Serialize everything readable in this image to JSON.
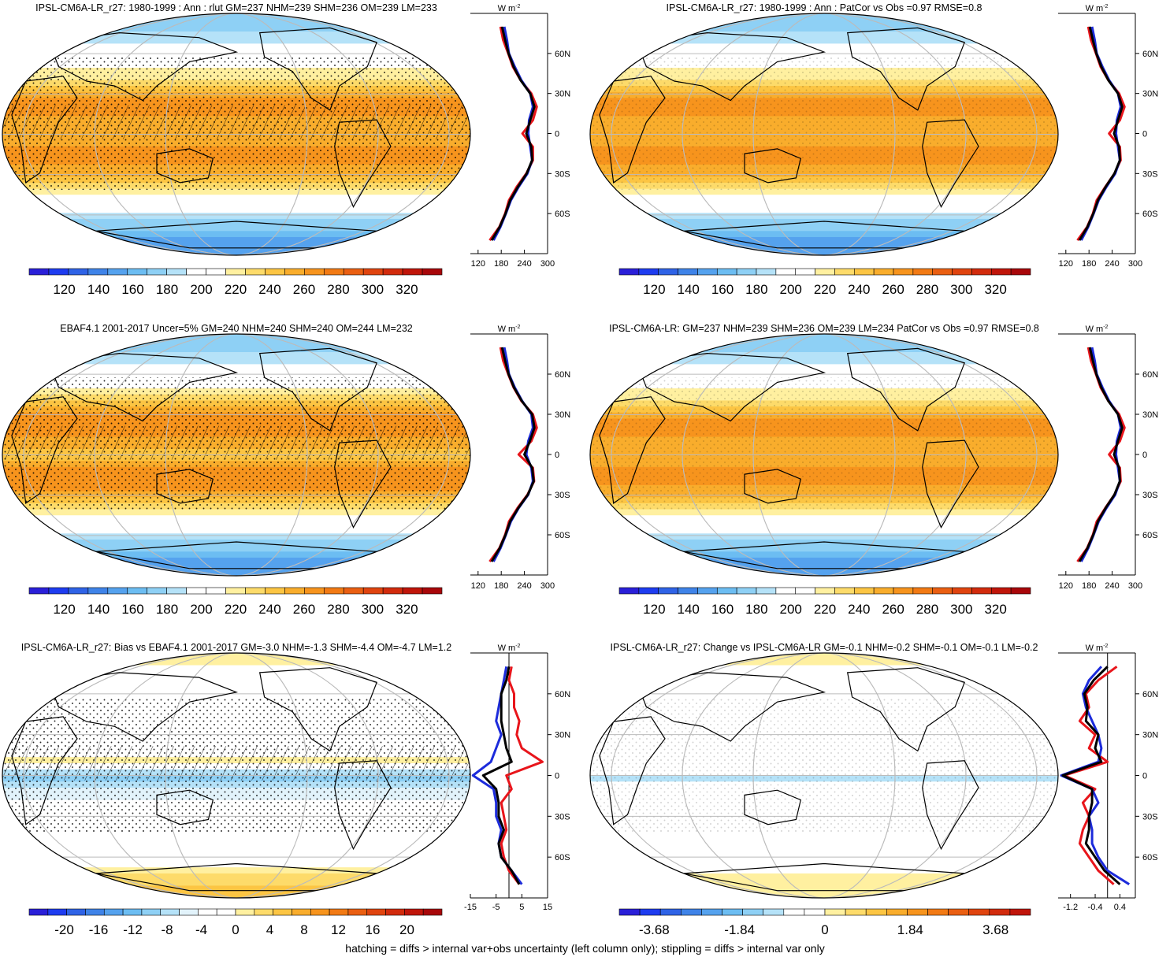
{
  "footer": "hatching = diffs > internal var+obs uncertainty (left column only); stippling = diffs > internal var only",
  "profile_unit": "W m",
  "profile_unit_sup": "-2",
  "lat_ticks": [
    "60N",
    "30N",
    "0",
    "30S",
    "60S"
  ],
  "chart_data": [
    {
      "type": "heatmap",
      "title": "IPSL-CM6A-LR_r27: 1980-1999 : Ann : rlut GM=237 NHM=239 SHM=236 OM=239 LM=233",
      "colorbar_ticks": [
        "120",
        "140",
        "160",
        "180",
        "200",
        "220",
        "240",
        "260",
        "280",
        "300",
        "320"
      ],
      "colorbar_range": [
        110,
        330
      ],
      "colorbar_colors": [
        "#2a1fd8",
        "#1e3cf0",
        "#2f63e6",
        "#3f83e8",
        "#55a2ee",
        "#6cbdf2",
        "#8ed0f5",
        "#b5e2f8",
        "#ffffff",
        "#ffffff",
        "#fff0a0",
        "#fddb6a",
        "#fcc543",
        "#f9ad2c",
        "#f7941d",
        "#f27a14",
        "#ea5f12",
        "#e0440f",
        "#d22b0d",
        "#c0150a",
        "#a8070a"
      ],
      "profile": {
        "xticks": [
          "120",
          "180",
          "240",
          "300"
        ],
        "xlim": [
          100,
          300
        ],
        "lat": [
          -80,
          -70,
          -60,
          -50,
          -40,
          -30,
          -20,
          -10,
          0,
          10,
          20,
          30,
          40,
          50,
          60,
          70,
          80
        ],
        "series": [
          {
            "color": "#e8151b",
            "values": [
              150,
              175,
              190,
              200,
              220,
              245,
              262,
              262,
              235,
              262,
              272,
              258,
              230,
              210,
              198,
              185,
              178
            ]
          },
          {
            "color": "#1c2bdb",
            "values": [
              160,
              178,
              192,
              205,
              225,
              248,
              260,
              255,
              250,
              252,
              262,
              255,
              232,
              215,
              200,
              195,
              188
            ]
          },
          {
            "color": "#000000",
            "values": [
              155,
              176,
              191,
              203,
              223,
              246,
              260,
              258,
              245,
              255,
              266,
              255,
              230,
              212,
              199,
              190,
              182
            ]
          }
        ]
      }
    },
    {
      "type": "heatmap",
      "title": "IPSL-CM6A-LR_r27: 1980-1999 : Ann : PatCor vs Obs =0.97 RMSE=0.8",
      "colorbar_ticks": [
        "120",
        "140",
        "160",
        "180",
        "200",
        "220",
        "240",
        "260",
        "280",
        "300",
        "320"
      ],
      "colorbar_range": [
        110,
        330
      ],
      "colorbar_colors": [
        "#2a1fd8",
        "#1e3cf0",
        "#2f63e6",
        "#3f83e8",
        "#55a2ee",
        "#6cbdf2",
        "#8ed0f5",
        "#b5e2f8",
        "#ffffff",
        "#ffffff",
        "#fff0a0",
        "#fddb6a",
        "#fcc543",
        "#f9ad2c",
        "#f7941d",
        "#f27a14",
        "#ea5f12",
        "#e0440f",
        "#d22b0d",
        "#c0150a",
        "#a8070a"
      ],
      "profile": {
        "xticks": [
          "120",
          "180",
          "240",
          "300"
        ],
        "xlim": [
          100,
          300
        ],
        "lat": [
          -80,
          -70,
          -60,
          -50,
          -40,
          -30,
          -20,
          -10,
          0,
          10,
          20,
          30,
          40,
          50,
          60,
          70,
          80
        ],
        "series": [
          {
            "color": "#e8151b",
            "values": [
              150,
              175,
              190,
              200,
              222,
              246,
              262,
              260,
              232,
              260,
              272,
              258,
              230,
              210,
              198,
              185,
              178
            ]
          },
          {
            "color": "#1c2bdb",
            "values": [
              160,
              178,
              192,
              205,
              225,
              248,
              260,
              255,
              250,
              252,
              262,
              255,
              232,
              215,
              200,
              195,
              188
            ]
          },
          {
            "color": "#000000",
            "values": [
              155,
              176,
              191,
              203,
              223,
              246,
              260,
              258,
              245,
              255,
              266,
              255,
              230,
              212,
              199,
              190,
              182
            ]
          }
        ]
      }
    },
    {
      "type": "heatmap",
      "title": "EBAF4.1 2001-2017 Uncer=5% GM=240 NHM=240 SHM=240 OM=244 LM=232",
      "colorbar_ticks": [
        "120",
        "140",
        "160",
        "180",
        "200",
        "220",
        "240",
        "260",
        "280",
        "300",
        "320"
      ],
      "colorbar_range": [
        110,
        330
      ],
      "colorbar_colors": [
        "#2a1fd8",
        "#1e3cf0",
        "#2f63e6",
        "#3f83e8",
        "#55a2ee",
        "#6cbdf2",
        "#8ed0f5",
        "#b5e2f8",
        "#ffffff",
        "#ffffff",
        "#fff0a0",
        "#fddb6a",
        "#fcc543",
        "#f9ad2c",
        "#f7941d",
        "#f27a14",
        "#ea5f12",
        "#e0440f",
        "#d22b0d",
        "#c0150a",
        "#a8070a"
      ],
      "profile": {
        "xticks": [
          "120",
          "180",
          "240",
          "300"
        ],
        "xlim": [
          100,
          300
        ],
        "lat": [
          -80,
          -70,
          -60,
          -50,
          -40,
          -30,
          -20,
          -10,
          0,
          10,
          20,
          30,
          40,
          50,
          60,
          70,
          80
        ],
        "series": [
          {
            "color": "#e8151b",
            "values": [
              150,
              175,
              190,
              200,
              222,
              248,
              265,
              262,
              225,
              258,
              272,
              262,
              232,
              212,
              198,
              185,
              178
            ]
          },
          {
            "color": "#1c2bdb",
            "values": [
              160,
              178,
              192,
              205,
              225,
              250,
              262,
              258,
              245,
              250,
              262,
              258,
              234,
              215,
              200,
              195,
              188
            ]
          },
          {
            "color": "#000000",
            "values": [
              155,
              176,
              191,
              203,
              224,
              249,
              264,
              260,
              240,
              254,
              266,
              260,
              233,
              213,
              199,
              190,
              182
            ]
          }
        ]
      }
    },
    {
      "type": "heatmap",
      "title": "IPSL-CM6A-LR: GM=237 NHM=239 SHM=236 OM=239 LM=234 PatCor vs Obs =0.97 RMSE=0.8",
      "colorbar_ticks": [
        "120",
        "140",
        "160",
        "180",
        "200",
        "220",
        "240",
        "260",
        "280",
        "300",
        "320"
      ],
      "colorbar_range": [
        110,
        330
      ],
      "colorbar_colors": [
        "#2a1fd8",
        "#1e3cf0",
        "#2f63e6",
        "#3f83e8",
        "#55a2ee",
        "#6cbdf2",
        "#8ed0f5",
        "#b5e2f8",
        "#ffffff",
        "#ffffff",
        "#fff0a0",
        "#fddb6a",
        "#fcc543",
        "#f9ad2c",
        "#f7941d",
        "#f27a14",
        "#ea5f12",
        "#e0440f",
        "#d22b0d",
        "#c0150a",
        "#a8070a"
      ],
      "profile": {
        "xticks": [
          "120",
          "180",
          "240",
          "300"
        ],
        "xlim": [
          100,
          300
        ],
        "lat": [
          -80,
          -70,
          -60,
          -50,
          -40,
          -30,
          -20,
          -10,
          0,
          10,
          20,
          30,
          40,
          50,
          60,
          70,
          80
        ],
        "series": [
          {
            "color": "#e8151b",
            "values": [
              150,
              175,
              190,
              200,
              222,
              246,
              262,
              260,
              232,
              260,
              272,
              258,
              230,
              210,
              198,
              185,
              178
            ]
          },
          {
            "color": "#1c2bdb",
            "values": [
              160,
              178,
              192,
              205,
              225,
              248,
              260,
              255,
              250,
              252,
              262,
              255,
              232,
              215,
              200,
              195,
              188
            ]
          },
          {
            "color": "#000000",
            "values": [
              155,
              176,
              191,
              203,
              223,
              246,
              260,
              258,
              245,
              255,
              266,
              255,
              230,
              212,
              199,
              190,
              182
            ]
          }
        ]
      }
    },
    {
      "type": "heatmap",
      "title": "IPSL-CM6A-LR_r27: Bias vs EBAF4.1 2001-2017 GM=-3.0 NHM=-1.3 SHM=-4.4 OM=-4.7 LM=1.2",
      "colorbar_ticks": [
        "-20",
        "-16",
        "-12",
        "-8",
        "-4",
        "0",
        "4",
        "8",
        "12",
        "16",
        "20"
      ],
      "colorbar_range": [
        -22,
        22
      ],
      "colorbar_colors": [
        "#2a1fd8",
        "#1e3cf0",
        "#2f63e6",
        "#3f83e8",
        "#55a2ee",
        "#6cbdf2",
        "#8ed0f5",
        "#b5e2f8",
        "#e2f3fb",
        "#ffffff",
        "#ffffff",
        "#fff0a0",
        "#fddb6a",
        "#fcc543",
        "#f9ad2c",
        "#f7941d",
        "#f27a14",
        "#ea5f12",
        "#e0440f",
        "#d22b0d",
        "#c0150a",
        "#a8070a"
      ],
      "profile": {
        "xticks": [
          "-15",
          "-5",
          "5",
          "15"
        ],
        "xlim": [
          -15,
          15
        ],
        "lat": [
          -80,
          -70,
          -60,
          -50,
          -40,
          -30,
          -20,
          -10,
          0,
          10,
          20,
          30,
          40,
          50,
          60,
          70,
          80
        ],
        "series": [
          {
            "color": "#e8151b",
            "values": [
              4,
              0,
              -2,
              -3,
              -1,
              -2,
              -3,
              1,
              -1,
              13,
              5,
              3,
              4,
              2,
              2,
              0,
              1
            ]
          },
          {
            "color": "#1c2bdb",
            "values": [
              5,
              1,
              -3,
              -4,
              -3,
              -5,
              -5,
              -6,
              -14,
              -7,
              -5,
              -3,
              -5,
              -4,
              -3,
              -2,
              -1
            ]
          },
          {
            "color": "#000000",
            "values": [
              4,
              1,
              -3,
              -4,
              -2,
              -4,
              -4,
              -5,
              -10,
              1,
              -1,
              -2,
              -3,
              -3,
              -3,
              -1,
              0
            ]
          }
        ]
      }
    },
    {
      "type": "heatmap",
      "title": "IPSL-CM6A-LR_r27: Change vs IPSL-CM6A-LR GM=-0.1 NHM=-0.2 SHM=-0.1 OM=-0.1 LM=-0.2",
      "colorbar_ticks": [
        "-3.68",
        "-1.84",
        "0",
        "1.84",
        "3.68"
      ],
      "colorbar_range": [
        -5.98,
        5.98
      ],
      "colorbar_colors": [
        "#2a1fd8",
        "#1e3cf0",
        "#2f63e6",
        "#3f83e8",
        "#55a2ee",
        "#6cbdf2",
        "#8ed0f5",
        "#b5e2f8",
        "#ffffff",
        "#ffffff",
        "#fff0a0",
        "#fddb6a",
        "#fcc543",
        "#f9ad2c",
        "#f7941d",
        "#f27a14",
        "#ea5f12",
        "#e0440f",
        "#d22b0d",
        "#c0150a"
      ],
      "profile": {
        "xticks": [
          "-1.2",
          "-0.4",
          "0.4"
        ],
        "xlim": [
          -1.6,
          0.9
        ],
        "lat": [
          -80,
          -70,
          -60,
          -50,
          -40,
          -30,
          -20,
          -10,
          0,
          10,
          20,
          30,
          40,
          50,
          60,
          70,
          80
        ],
        "series": [
          {
            "color": "#e8151b",
            "values": [
              0.2,
              -0.3,
              -0.6,
              -0.9,
              -0.8,
              -0.6,
              -0.8,
              -0.4,
              -1.4,
              0.0,
              -0.6,
              -0.4,
              -0.9,
              -0.6,
              -0.7,
              -0.3,
              0.3
            ]
          },
          {
            "color": "#1c2bdb",
            "values": [
              0.7,
              0.0,
              -0.3,
              -0.5,
              -0.5,
              -0.6,
              -0.3,
              -0.5,
              -1.5,
              -0.3,
              -0.2,
              -0.3,
              -0.5,
              -0.7,
              -0.8,
              -0.6,
              -0.2
            ]
          },
          {
            "color": "#000000",
            "values": [
              0.4,
              -0.1,
              -0.4,
              -0.7,
              -0.6,
              -0.6,
              -0.5,
              -0.5,
              -1.45,
              -0.2,
              -0.4,
              -0.3,
              -0.7,
              -0.65,
              -0.75,
              -0.45,
              0.0
            ]
          }
        ]
      }
    }
  ]
}
